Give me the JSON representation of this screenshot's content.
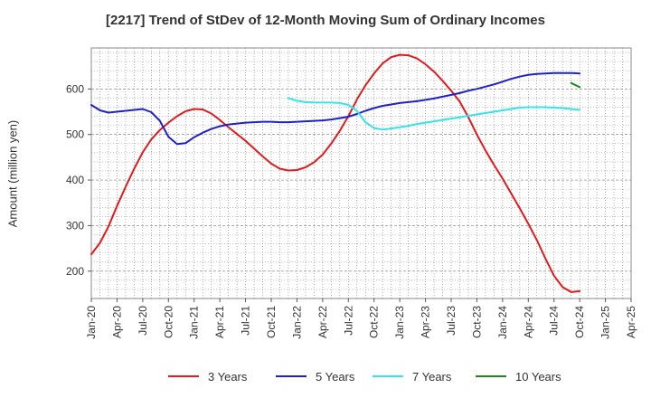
{
  "chart_data": {
    "type": "line",
    "title": "[2217]  Trend of StDev of 12-Month Moving Sum of Ordinary Incomes",
    "xlabel": "",
    "ylabel": "Amount (million yen)",
    "ylim": [
      140,
      690
    ],
    "yticks": [
      200,
      300,
      400,
      500,
      600
    ],
    "xticks": [
      "Jan-20",
      "Apr-20",
      "Jul-20",
      "Oct-20",
      "Jan-21",
      "Apr-21",
      "Jul-21",
      "Oct-21",
      "Jan-22",
      "Apr-22",
      "Jul-22",
      "Oct-22",
      "Jan-23",
      "Apr-23",
      "Jul-23",
      "Oct-23",
      "Jan-24",
      "Apr-24",
      "Jul-24",
      "Oct-24",
      "Jan-25",
      "Apr-25"
    ],
    "grid": true,
    "legend_position": "bottom",
    "series": [
      {
        "name": "3 Years",
        "color": "#e31a1c",
        "points": [
          [
            "2020-01",
            237
          ],
          [
            "2020-02",
            262
          ],
          [
            "2020-03",
            298
          ],
          [
            "2020-04",
            343
          ],
          [
            "2020-05",
            385
          ],
          [
            "2020-06",
            425
          ],
          [
            "2020-07",
            461
          ],
          [
            "2020-08",
            489
          ],
          [
            "2020-09",
            510
          ],
          [
            "2020-10",
            526
          ],
          [
            "2020-11",
            540
          ],
          [
            "2020-12",
            551
          ],
          [
            "2021-01",
            556
          ],
          [
            "2021-02",
            555
          ],
          [
            "2021-03",
            546
          ],
          [
            "2021-04",
            532
          ],
          [
            "2021-05",
            516
          ],
          [
            "2021-06",
            501
          ],
          [
            "2021-07",
            486
          ],
          [
            "2021-08",
            469
          ],
          [
            "2021-09",
            452
          ],
          [
            "2021-10",
            436
          ],
          [
            "2021-11",
            425
          ],
          [
            "2021-12",
            421
          ],
          [
            "2022-01",
            422
          ],
          [
            "2022-02",
            428
          ],
          [
            "2022-03",
            439
          ],
          [
            "2022-04",
            456
          ],
          [
            "2022-05",
            480
          ],
          [
            "2022-06",
            508
          ],
          [
            "2022-07",
            540
          ],
          [
            "2022-08",
            577
          ],
          [
            "2022-09",
            608
          ],
          [
            "2022-10",
            634
          ],
          [
            "2022-11",
            656
          ],
          [
            "2022-12",
            670
          ],
          [
            "2023-01",
            675
          ],
          [
            "2023-02",
            674
          ],
          [
            "2023-03",
            667
          ],
          [
            "2023-04",
            654
          ],
          [
            "2023-05",
            638
          ],
          [
            "2023-06",
            618
          ],
          [
            "2023-07",
            596
          ],
          [
            "2023-08",
            572
          ],
          [
            "2023-09",
            538
          ],
          [
            "2023-10",
            500
          ],
          [
            "2023-11",
            465
          ],
          [
            "2023-12",
            433
          ],
          [
            "2024-01",
            403
          ],
          [
            "2024-02",
            371
          ],
          [
            "2024-03",
            338
          ],
          [
            "2024-04",
            304
          ],
          [
            "2024-05",
            268
          ],
          [
            "2024-06",
            228
          ],
          [
            "2024-07",
            190
          ],
          [
            "2024-08",
            165
          ],
          [
            "2024-09",
            154
          ],
          [
            "2024-10",
            156
          ]
        ]
      },
      {
        "name": "5 Years",
        "color": "#1f1fcc",
        "points": [
          [
            "2020-01",
            565
          ],
          [
            "2020-02",
            553
          ],
          [
            "2020-03",
            548
          ],
          [
            "2020-04",
            550
          ],
          [
            "2020-05",
            552
          ],
          [
            "2020-06",
            554
          ],
          [
            "2020-07",
            556
          ],
          [
            "2020-08",
            549
          ],
          [
            "2020-09",
            530
          ],
          [
            "2020-10",
            495
          ],
          [
            "2020-11",
            479
          ],
          [
            "2020-12",
            481
          ],
          [
            "2021-01",
            494
          ],
          [
            "2021-02",
            504
          ],
          [
            "2021-03",
            512
          ],
          [
            "2021-04",
            518
          ],
          [
            "2021-05",
            522
          ],
          [
            "2021-06",
            524
          ],
          [
            "2021-07",
            526
          ],
          [
            "2021-08",
            527
          ],
          [
            "2021-09",
            528
          ],
          [
            "2021-10",
            528
          ],
          [
            "2021-11",
            527
          ],
          [
            "2021-12",
            527
          ],
          [
            "2022-01",
            528
          ],
          [
            "2022-02",
            529
          ],
          [
            "2022-03",
            530
          ],
          [
            "2022-04",
            531
          ],
          [
            "2022-05",
            533
          ],
          [
            "2022-06",
            536
          ],
          [
            "2022-07",
            539
          ],
          [
            "2022-08",
            545
          ],
          [
            "2022-09",
            552
          ],
          [
            "2022-10",
            558
          ],
          [
            "2022-11",
            563
          ],
          [
            "2022-12",
            566
          ],
          [
            "2023-01",
            569
          ],
          [
            "2023-02",
            571
          ],
          [
            "2023-03",
            573
          ],
          [
            "2023-04",
            576
          ],
          [
            "2023-05",
            579
          ],
          [
            "2023-06",
            583
          ],
          [
            "2023-07",
            587
          ],
          [
            "2023-08",
            591
          ],
          [
            "2023-09",
            596
          ],
          [
            "2023-10",
            600
          ],
          [
            "2023-11",
            605
          ],
          [
            "2023-12",
            610
          ],
          [
            "2024-01",
            616
          ],
          [
            "2024-02",
            622
          ],
          [
            "2024-03",
            627
          ],
          [
            "2024-04",
            631
          ],
          [
            "2024-05",
            633
          ],
          [
            "2024-06",
            634
          ],
          [
            "2024-07",
            635
          ],
          [
            "2024-08",
            635
          ],
          [
            "2024-09",
            635
          ],
          [
            "2024-10",
            634
          ]
        ]
      },
      {
        "name": "7 Years",
        "color": "#33e5e5",
        "points": [
          [
            "2021-12",
            580
          ],
          [
            "2022-01",
            574
          ],
          [
            "2022-02",
            571
          ],
          [
            "2022-03",
            570
          ],
          [
            "2022-04",
            570
          ],
          [
            "2022-05",
            570
          ],
          [
            "2022-06",
            569
          ],
          [
            "2022-07",
            565
          ],
          [
            "2022-08",
            552
          ],
          [
            "2022-09",
            527
          ],
          [
            "2022-10",
            514
          ],
          [
            "2022-11",
            511
          ],
          [
            "2022-12",
            513
          ],
          [
            "2023-01",
            516
          ],
          [
            "2023-02",
            519
          ],
          [
            "2023-03",
            523
          ],
          [
            "2023-04",
            526
          ],
          [
            "2023-05",
            529
          ],
          [
            "2023-06",
            532
          ],
          [
            "2023-07",
            535
          ],
          [
            "2023-08",
            538
          ],
          [
            "2023-09",
            541
          ],
          [
            "2023-10",
            544
          ],
          [
            "2023-11",
            547
          ],
          [
            "2023-12",
            550
          ],
          [
            "2024-01",
            553
          ],
          [
            "2024-02",
            556
          ],
          [
            "2024-03",
            559
          ],
          [
            "2024-04",
            560
          ],
          [
            "2024-05",
            560
          ],
          [
            "2024-06",
            560
          ],
          [
            "2024-07",
            559
          ],
          [
            "2024-08",
            558
          ],
          [
            "2024-09",
            556
          ],
          [
            "2024-10",
            554
          ]
        ]
      },
      {
        "name": "10 Years",
        "color": "#1a8a1a",
        "points": [
          [
            "2024-09",
            613
          ],
          [
            "2024-10",
            604
          ]
        ]
      }
    ]
  }
}
